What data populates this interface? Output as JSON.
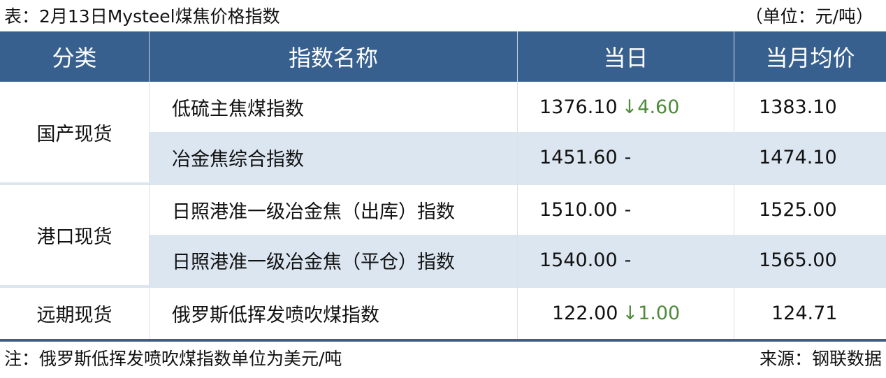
{
  "title": "表：2月13日Mysteel煤焦价格指数",
  "unit": "（单位：元/吨）",
  "headers": [
    "分类",
    "指数名称",
    "当日",
    "当月均价"
  ],
  "groups": [
    {
      "category": "国产现货",
      "rows": [
        {
          "name": "低硫主焦煤指数",
          "value": "1376.10",
          "arrow": "↓",
          "change": "4.60",
          "avg": "1383.10"
        },
        {
          "name": "冶金焦综合指数",
          "value": "1451.60",
          "change": "-",
          "avg": "1474.10"
        }
      ]
    },
    {
      "category": "港口现货",
      "rows": [
        {
          "name": "日照港准一级冶金焦（出库）指数",
          "value": "1510.00",
          "change": "-",
          "avg": "1525.00"
        },
        {
          "name": "日照港准一级冶金焦（平仓）指数",
          "value": "1540.00",
          "change": "-",
          "avg": "1565.00"
        }
      ]
    },
    {
      "category": "远期现货",
      "rows": [
        {
          "name": "俄罗斯低挥发喷吹煤指数",
          "value": "122.00",
          "arrow": "↓",
          "change": "1.00",
          "avg": "124.71"
        }
      ]
    }
  ],
  "colors": {
    "header": "#38608f",
    "alt_row": "#dce6f1",
    "down": "#4e8a3a"
  },
  "note": "注：俄罗斯低挥发喷吹煤指数单位为美元/吨",
  "source": "来源：钢联数据"
}
